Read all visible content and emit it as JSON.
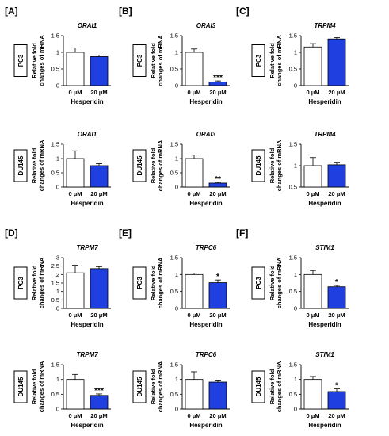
{
  "colors": {
    "control": "#ffffff",
    "treated": "#1f3fe0",
    "axis": "#000000"
  },
  "panel_labels": [
    "[A]",
    "[B]",
    "[C]",
    "[D]",
    "[E]",
    "[F]"
  ],
  "common": {
    "ylabel_line1": "Relative fold",
    "ylabel_line2": "changes of mRNA",
    "xlabel": "Hesperidin",
    "categories": [
      "0 μM",
      "20 μM"
    ]
  },
  "chart_data": [
    {
      "type": "bar",
      "panel": "[A]",
      "title": "ORAI1",
      "cell_line": "PC3",
      "categories": [
        "0 μM",
        "20 μM"
      ],
      "values": [
        1.0,
        0.87
      ],
      "errors": [
        0.13,
        0.05
      ],
      "ylim": [
        0,
        1.5
      ],
      "yticks": [
        "0",
        "0.5",
        "1",
        "1.5"
      ],
      "tick_values": [
        0,
        0.5,
        1,
        1.5
      ],
      "significance": "",
      "xlabel": "Hesperidin",
      "ylabel": "Relative fold changes of mRNA"
    },
    {
      "type": "bar",
      "panel": "[A]",
      "title": "ORAI1",
      "cell_line": "DU145",
      "categories": [
        "0 μM",
        "20 μM"
      ],
      "values": [
        1.0,
        0.75
      ],
      "errors": [
        0.27,
        0.07
      ],
      "ylim": [
        0,
        1.5
      ],
      "yticks": [
        "0",
        "0.5",
        "1",
        "1.5"
      ],
      "tick_values": [
        0,
        0.5,
        1,
        1.5
      ],
      "significance": "",
      "xlabel": "Hesperidin",
      "ylabel": "Relative fold changes of mRNA"
    },
    {
      "type": "bar",
      "panel": "[B]",
      "title": "ORAI3",
      "cell_line": "PC3",
      "categories": [
        "0 μM",
        "20 μM"
      ],
      "values": [
        1.0,
        0.11
      ],
      "errors": [
        0.1,
        0.03
      ],
      "ylim": [
        0,
        1.5
      ],
      "yticks": [
        "0",
        "0.5",
        "1",
        "1.5"
      ],
      "tick_values": [
        0,
        0.5,
        1,
        1.5
      ],
      "significance": "***",
      "xlabel": "Hesperidin",
      "ylabel": "Relative fold changes of mRNA"
    },
    {
      "type": "bar",
      "panel": "[B]",
      "title": "ORAI3",
      "cell_line": "DU145",
      "categories": [
        "0 μM",
        "20 μM"
      ],
      "values": [
        1.0,
        0.14
      ],
      "errors": [
        0.12,
        0.03
      ],
      "ylim": [
        0,
        1.5
      ],
      "yticks": [
        "0",
        "0.5",
        "1",
        "1.5"
      ],
      "tick_values": [
        0,
        0.5,
        1,
        1.5
      ],
      "significance": "**",
      "xlabel": "Hesperidin",
      "ylabel": "Relative fold changes of mRNA"
    },
    {
      "type": "bar",
      "panel": "[C]",
      "title": "TRPM4",
      "cell_line": "PC3",
      "categories": [
        "0 μM",
        "20 μM"
      ],
      "values": [
        1.16,
        1.4
      ],
      "errors": [
        0.1,
        0.04
      ],
      "ylim": [
        0,
        1.5
      ],
      "yticks": [
        "0",
        "0.5",
        "1",
        "1.5"
      ],
      "tick_values": [
        0,
        0.5,
        1,
        1.5
      ],
      "significance": "",
      "xlabel": "Hesperidin",
      "ylabel": "Relative fold changes of mRNA"
    },
    {
      "type": "bar",
      "panel": "[C]",
      "title": "TRPM4",
      "cell_line": "DU145",
      "categories": [
        "0 μM",
        "20 μM"
      ],
      "values": [
        1.0,
        1.02
      ],
      "errors": [
        0.19,
        0.06
      ],
      "ylim": [
        0.5,
        1.5
      ],
      "yticks": [
        "0.5",
        "1",
        "1.5"
      ],
      "tick_values": [
        0.5,
        1,
        1.5
      ],
      "significance": "",
      "xlabel": "Hesperidin",
      "ylabel": "Relative fold changes of mRNA"
    },
    {
      "type": "bar",
      "panel": "[D]",
      "title": "TRPM7",
      "cell_line": "PC3",
      "categories": [
        "0 μM",
        "20 μM"
      ],
      "values": [
        2.1,
        2.35
      ],
      "errors": [
        0.45,
        0.12
      ],
      "ylim": [
        0,
        3
      ],
      "yticks": [
        "0",
        "0.5",
        "1",
        "1.5",
        "2",
        "2.5",
        "3"
      ],
      "tick_values": [
        0,
        0.5,
        1,
        1.5,
        2,
        2.5,
        3
      ],
      "significance": "",
      "xlabel": "Hesperidin",
      "ylabel": "Relative fold changes of mRNA"
    },
    {
      "type": "bar",
      "panel": "[D]",
      "title": "TRPM7",
      "cell_line": "DU145",
      "categories": [
        "0 μM",
        "20 μM"
      ],
      "values": [
        1.0,
        0.46
      ],
      "errors": [
        0.17,
        0.05
      ],
      "ylim": [
        0,
        1.5
      ],
      "yticks": [
        "0",
        "0.5",
        "1",
        "1.5"
      ],
      "tick_values": [
        0,
        0.5,
        1,
        1.5
      ],
      "significance": "***",
      "xlabel": "Hesperidin",
      "ylabel": "Relative fold changes of mRNA"
    },
    {
      "type": "bar",
      "panel": "[E]",
      "title": "TRPC6",
      "cell_line": "PC3",
      "categories": [
        "0 μM",
        "20 μM"
      ],
      "values": [
        1.0,
        0.76
      ],
      "errors": [
        0.04,
        0.08
      ],
      "ylim": [
        0,
        1.5
      ],
      "yticks": [
        "0",
        "0.5",
        "1",
        "1.5"
      ],
      "tick_values": [
        0,
        0.5,
        1,
        1.5
      ],
      "significance": "*",
      "xlabel": "Hesperidin",
      "ylabel": "Relative fold changes of mRNA"
    },
    {
      "type": "bar",
      "panel": "[E]",
      "title": "TRPC6",
      "cell_line": "DU145",
      "categories": [
        "0 μM",
        "20 μM"
      ],
      "values": [
        1.0,
        0.91
      ],
      "errors": [
        0.26,
        0.07
      ],
      "ylim": [
        0,
        1.5
      ],
      "yticks": [
        "0",
        "0.5",
        "1",
        "1.5"
      ],
      "tick_values": [
        0,
        0.5,
        1,
        1.5
      ],
      "significance": "",
      "xlabel": "Hesperidin",
      "ylabel": "Relative fold changes of mRNA"
    },
    {
      "type": "bar",
      "panel": "[F]",
      "title": "STIM1",
      "cell_line": "PC3",
      "categories": [
        "0 μM",
        "20 μM"
      ],
      "values": [
        1.0,
        0.64
      ],
      "errors": [
        0.12,
        0.04
      ],
      "ylim": [
        0,
        1.5
      ],
      "yticks": [
        "0",
        "0.5",
        "1",
        "1.5"
      ],
      "tick_values": [
        0,
        0.5,
        1,
        1.5
      ],
      "significance": "*",
      "xlabel": "Hesperidin",
      "ylabel": "Relative fold changes of mRNA"
    },
    {
      "type": "bar",
      "panel": "[F]",
      "title": "STIM1",
      "cell_line": "DU145",
      "categories": [
        "0 μM",
        "20 μM"
      ],
      "values": [
        1.0,
        0.59
      ],
      "errors": [
        0.1,
        0.09
      ],
      "ylim": [
        0,
        1.5
      ],
      "yticks": [
        "0",
        "0.5",
        "1",
        "1.5"
      ],
      "tick_values": [
        0,
        0.5,
        1,
        1.5
      ],
      "significance": "*",
      "xlabel": "Hesperidin",
      "ylabel": "Relative fold changes of mRNA"
    }
  ]
}
